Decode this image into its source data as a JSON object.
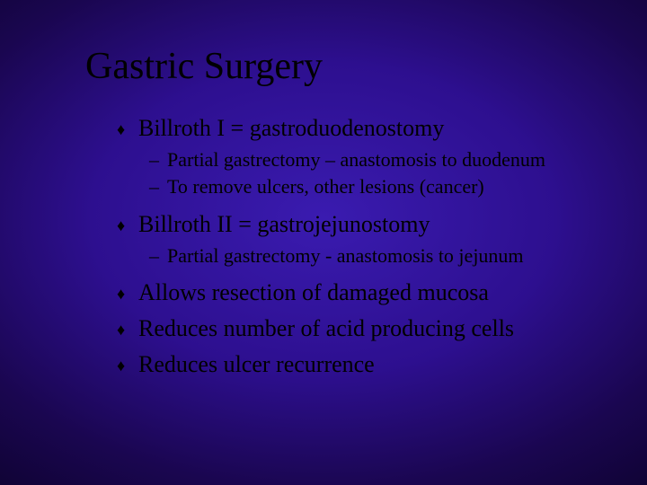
{
  "slide": {
    "title": "Gastric Surgery",
    "bullets": {
      "b1": "Billroth I = gastroduodenostomy",
      "b1_1": "Partial gastrectomy – anastomosis to duodenum",
      "b1_2": "To remove ulcers, other lesions (cancer)",
      "b2": "Billroth II = gastrojejunostomy",
      "b2_1": "Partial gastrectomy - anastomosis to jejunum",
      "b3": "Allows resection of damaged mucosa",
      "b4": "Reduces number of acid producing cells",
      "b5": "Reduces ulcer recurrence"
    }
  },
  "style": {
    "background_gradient": {
      "center_color": "#3a1bb0",
      "mid_color": "#2d0f8f",
      "outer_color": "#1a0650",
      "edge_color": "#0a0225"
    },
    "title_color": "#000000",
    "text_color": "#000000",
    "title_fontsize": 42,
    "level1_fontsize": 26,
    "level2_fontsize": 22,
    "font_family": "Times New Roman",
    "bullet_l1_glyph": "♦",
    "bullet_l2_glyph": "–",
    "slide_width": 720,
    "slide_height": 540
  }
}
